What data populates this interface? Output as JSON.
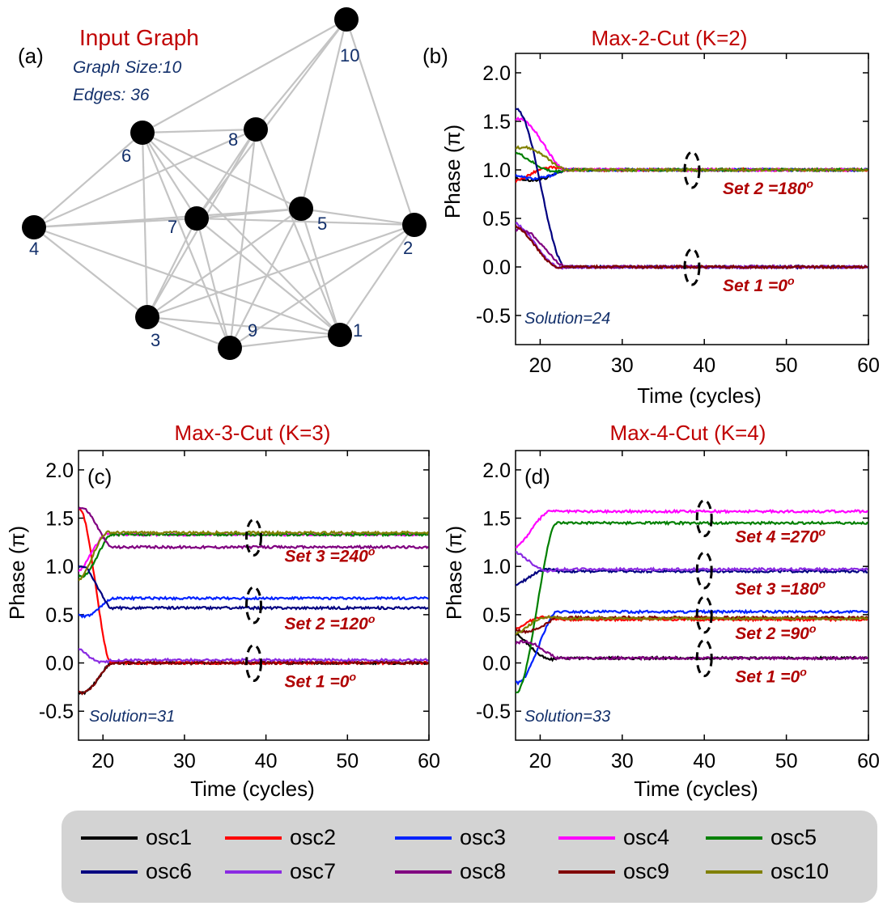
{
  "colors": {
    "title": "#c00000",
    "info": "#13306b",
    "set_label": "#b00000",
    "edge": "#c4c4c4",
    "node": "#000000",
    "axis": "#000000",
    "ellipse": "#000000",
    "legend_bg": "#d3d3d3"
  },
  "panel_a": {
    "tag": "(a)",
    "title": "Input Graph",
    "info_size": "Graph Size:10",
    "info_edges": "Edges: 36",
    "nodes": [
      {
        "id": "1",
        "label": "1"
      },
      {
        "id": "2",
        "label": "2"
      },
      {
        "id": "3",
        "label": "3"
      },
      {
        "id": "4",
        "label": "4"
      },
      {
        "id": "5",
        "label": "5"
      },
      {
        "id": "6",
        "label": "6"
      },
      {
        "id": "7",
        "label": "7"
      },
      {
        "id": "8",
        "label": "8"
      },
      {
        "id": "9",
        "label": "9"
      },
      {
        "id": "10",
        "label": "10"
      }
    ],
    "edges": [
      [
        "10",
        "6"
      ],
      [
        "10",
        "8"
      ],
      [
        "10",
        "7"
      ],
      [
        "10",
        "5"
      ],
      [
        "10",
        "2"
      ],
      [
        "6",
        "8"
      ],
      [
        "6",
        "4"
      ],
      [
        "6",
        "7"
      ],
      [
        "6",
        "5"
      ],
      [
        "6",
        "3"
      ],
      [
        "6",
        "9"
      ],
      [
        "6",
        "1"
      ],
      [
        "8",
        "4"
      ],
      [
        "8",
        "7"
      ],
      [
        "8",
        "3"
      ],
      [
        "8",
        "9"
      ],
      [
        "8",
        "1"
      ],
      [
        "4",
        "7"
      ],
      [
        "4",
        "5"
      ],
      [
        "4",
        "3"
      ],
      [
        "4",
        "1"
      ],
      [
        "7",
        "5"
      ],
      [
        "7",
        "3"
      ],
      [
        "7",
        "9"
      ],
      [
        "7",
        "1"
      ],
      [
        "5",
        "2"
      ],
      [
        "5",
        "3"
      ],
      [
        "5",
        "9"
      ],
      [
        "5",
        "1"
      ],
      [
        "2",
        "3"
      ],
      [
        "2",
        "9"
      ],
      [
        "2",
        "1"
      ],
      [
        "3",
        "9"
      ],
      [
        "3",
        "1"
      ],
      [
        "9",
        "1"
      ],
      [
        "7",
        "2"
      ]
    ]
  },
  "chart_data": [
    {
      "id": "b",
      "type": "line",
      "tag": "(b)",
      "title": "Max-2-Cut (K=2)",
      "xlabel": "Time (cycles)",
      "ylabel": "Phase (π)",
      "xlim": [
        17,
        60
      ],
      "ylim": [
        -0.8,
        2.2
      ],
      "xticks": [
        "20",
        "30",
        "40",
        "50",
        "60"
      ],
      "yticks": [
        "-0.5",
        "0.0",
        "0.5",
        "1.0",
        "1.5",
        "2.0"
      ],
      "solution": "Solution=24",
      "sets": [
        {
          "label": "Set 2 =180",
          "sup": "o",
          "y": 1.0
        },
        {
          "label": "Set 1 =0",
          "sup": "o",
          "y": 0.0
        }
      ],
      "ellipse_x": 38.5,
      "settle_x": 23,
      "series": [
        {
          "name": "osc1",
          "start": 0.92,
          "final": 1.0
        },
        {
          "name": "osc2",
          "start": 0.88,
          "final": 1.0
        },
        {
          "name": "osc3",
          "start": 0.95,
          "final": 1.0
        },
        {
          "name": "osc4",
          "start": 1.52,
          "final": 1.0
        },
        {
          "name": "osc5",
          "start": 1.18,
          "final": 1.0
        },
        {
          "name": "osc6",
          "start": 1.62,
          "final": 0.0
        },
        {
          "name": "osc7",
          "start": 0.45,
          "final": 0.0
        },
        {
          "name": "osc8",
          "start": 0.38,
          "final": 0.0
        },
        {
          "name": "osc9",
          "start": 0.42,
          "final": 0.0
        },
        {
          "name": "osc10",
          "start": 1.22,
          "final": 1.0
        }
      ]
    },
    {
      "id": "c",
      "type": "line",
      "tag": "(c)",
      "title": "Max-3-Cut (K=3)",
      "xlabel": "Time (cycles)",
      "ylabel": "Phase (π)",
      "xlim": [
        17,
        60
      ],
      "ylim": [
        -0.8,
        2.2
      ],
      "xticks": [
        "20",
        "30",
        "40",
        "50",
        "60"
      ],
      "yticks": [
        "-0.5",
        "0.0",
        "0.5",
        "1.0",
        "1.5",
        "2.0"
      ],
      "solution": "Solution=31",
      "sets": [
        {
          "label": "Set 3 =240",
          "sup": "o",
          "y": 1.3
        },
        {
          "label": "Set 2 =120",
          "sup": "o",
          "y": 0.6
        },
        {
          "label": "Set 1 =0",
          "sup": "o",
          "y": 0.0
        }
      ],
      "ellipse_x": 38.5,
      "settle_x": 21,
      "series": [
        {
          "name": "osc1",
          "start": -0.3,
          "final": 0.0
        },
        {
          "name": "osc2",
          "start": 1.6,
          "final": 0.0
        },
        {
          "name": "osc3",
          "start": 0.5,
          "final": 0.67
        },
        {
          "name": "osc4",
          "start": 0.95,
          "final": 1.33
        },
        {
          "name": "osc5",
          "start": 0.9,
          "final": 1.33
        },
        {
          "name": "osc6",
          "start": 1.0,
          "final": 0.57
        },
        {
          "name": "osc7",
          "start": 0.15,
          "final": 0.03
        },
        {
          "name": "osc8",
          "start": 1.6,
          "final": 1.2
        },
        {
          "name": "osc9",
          "start": -0.3,
          "final": 0.0
        },
        {
          "name": "osc10",
          "start": 0.85,
          "final": 1.35
        }
      ]
    },
    {
      "id": "d",
      "type": "line",
      "tag": "(d)",
      "title": "Max-4-Cut (K=4)",
      "xlabel": "Time (cycles)",
      "ylabel": "Phase (π)",
      "xlim": [
        17,
        60
      ],
      "ylim": [
        -0.8,
        2.2
      ],
      "xticks": [
        "20",
        "30",
        "40",
        "50",
        "60"
      ],
      "yticks": [
        "-0.5",
        "0.0",
        "0.5",
        "1.0",
        "1.5",
        "2.0"
      ],
      "solution": "Solution=33",
      "sets": [
        {
          "label": "Set 4 =270",
          "sup": "o",
          "y": 1.5
        },
        {
          "label": "Set 3 =180",
          "sup": "o",
          "y": 0.96
        },
        {
          "label": "Set 2 =90",
          "sup": "o",
          "y": 0.5
        },
        {
          "label": "Set 1 =0",
          "sup": "o",
          "y": 0.05
        }
      ],
      "ellipse_x": 40,
      "settle_x": 22,
      "series": [
        {
          "name": "osc1",
          "start": 0.3,
          "final": 0.05
        },
        {
          "name": "osc2",
          "start": 0.35,
          "final": 0.45
        },
        {
          "name": "osc3",
          "start": -0.2,
          "final": 0.53
        },
        {
          "name": "osc4",
          "start": 1.2,
          "final": 1.57
        },
        {
          "name": "osc5",
          "start": -0.3,
          "final": 1.45
        },
        {
          "name": "osc6",
          "start": 0.8,
          "final": 0.95
        },
        {
          "name": "osc7",
          "start": 1.15,
          "final": 0.97
        },
        {
          "name": "osc8",
          "start": 0.2,
          "final": 0.05
        },
        {
          "name": "osc9",
          "start": 0.35,
          "final": 0.47
        },
        {
          "name": "osc10",
          "start": 0.3,
          "final": 0.46
        }
      ]
    }
  ],
  "legend": [
    {
      "name": "osc1",
      "color": "#000000"
    },
    {
      "name": "osc2",
      "color": "#ff0000"
    },
    {
      "name": "osc3",
      "color": "#0022ff"
    },
    {
      "name": "osc4",
      "color": "#ff00ff"
    },
    {
      "name": "osc5",
      "color": "#008000"
    },
    {
      "name": "osc6",
      "color": "#000080"
    },
    {
      "name": "osc7",
      "color": "#8a2be2"
    },
    {
      "name": "osc8",
      "color": "#800080"
    },
    {
      "name": "osc9",
      "color": "#800000"
    },
    {
      "name": "osc10",
      "color": "#808000"
    }
  ]
}
